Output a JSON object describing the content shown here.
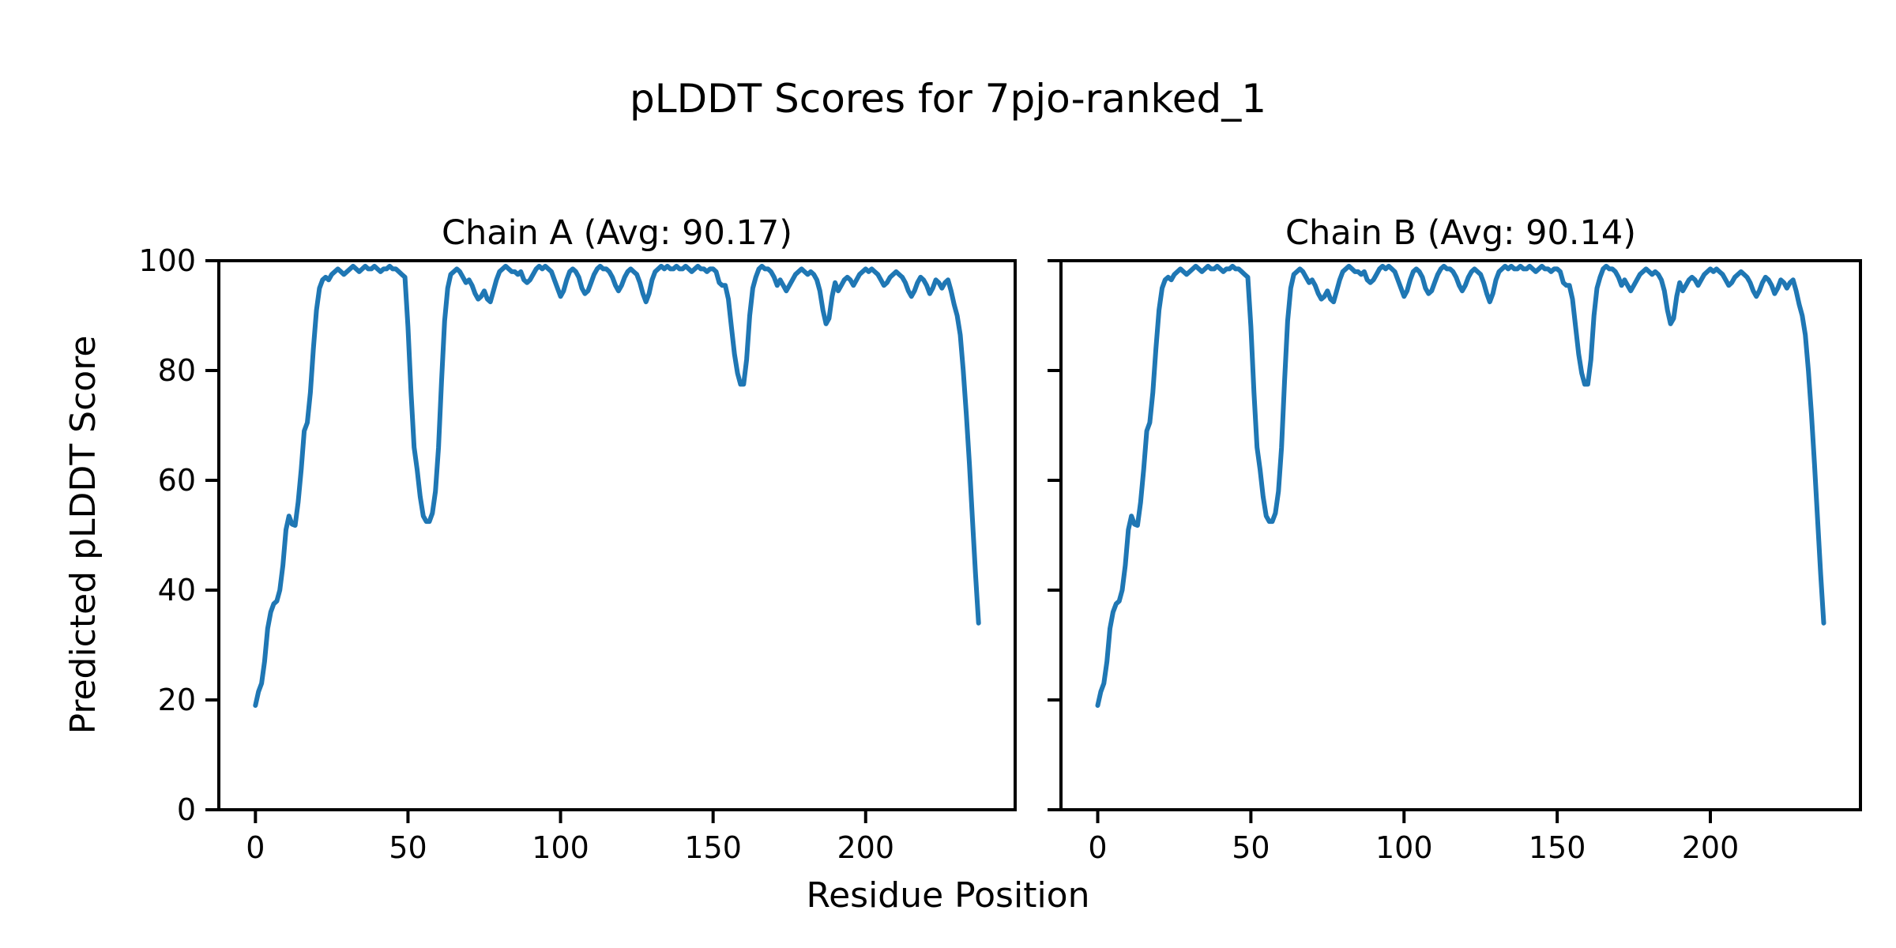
{
  "figure": {
    "title": "pLDDT Scores for 7pjo-ranked_1",
    "background_color": "#ffffff",
    "text_color": "#000000"
  },
  "chart_data": {
    "type": "line",
    "title": "pLDDT Scores for 7pjo-ranked_1",
    "xlabel": "Residue Position",
    "ylabel": "Predicted pLDDT Score",
    "xlim": [
      -12,
      249
    ],
    "ylim": [
      0,
      100
    ],
    "xticks": [
      0,
      50,
      100,
      150,
      200
    ],
    "yticks": [
      0,
      20,
      40,
      60,
      80,
      100
    ],
    "grid": false,
    "legend": "none",
    "line_color": "#1f77b4",
    "axis_color": "#000000",
    "x_start": 0,
    "x_step": 1,
    "subplots": [
      {
        "id": "chain-a",
        "name": "Chain A",
        "avg": 90.17,
        "title": "Chain A (Avg: 90.17)",
        "values": [
          19,
          21.5,
          23,
          27,
          33,
          36,
          37.5,
          38,
          40,
          44.5,
          51,
          53.5,
          52,
          51.8,
          56,
          62,
          69,
          70.5,
          76,
          84,
          91,
          95,
          96.5,
          97,
          96.5,
          97.5,
          98,
          98.5,
          98,
          97.5,
          98,
          98.5,
          99,
          98.5,
          98,
          98.5,
          99,
          98.5,
          98.5,
          99,
          98.5,
          98,
          98.5,
          98.5,
          99,
          98.5,
          98.5,
          98,
          97.5,
          97,
          88,
          76,
          66,
          62,
          57,
          53.5,
          52.5,
          52.5,
          54,
          58,
          66,
          78,
          89,
          95,
          97.5,
          98,
          98.5,
          98,
          97,
          96,
          96.5,
          95.5,
          94,
          93,
          93.5,
          94.5,
          93,
          92.5,
          94.5,
          96.5,
          98,
          98.5,
          99,
          98.5,
          98,
          98,
          97.5,
          98,
          96.5,
          96,
          96.5,
          97.5,
          98.5,
          99,
          98.5,
          99,
          98.5,
          98,
          96.5,
          95,
          93.5,
          94.5,
          96.5,
          98,
          98.5,
          98,
          97,
          95,
          94,
          94.5,
          96,
          97.5,
          98.5,
          99,
          98.5,
          98.5,
          98,
          97,
          95.5,
          94.5,
          95.5,
          97,
          98,
          98.5,
          98,
          97.5,
          96,
          94,
          92.5,
          94,
          96.5,
          98,
          98.5,
          99,
          98.5,
          99,
          98.5,
          98.5,
          99,
          98.5,
          98.5,
          99,
          98.5,
          98,
          98.5,
          99,
          98.5,
          98.5,
          98,
          98.5,
          98.5,
          98,
          96,
          95.5,
          95.5,
          93,
          88,
          83,
          79.5,
          77.5,
          77.5,
          82,
          90,
          95,
          97,
          98.5,
          99,
          98.5,
          98.5,
          98,
          97,
          95.5,
          96.5,
          95.5,
          94.5,
          95.5,
          96.5,
          97.5,
          98,
          98.5,
          98,
          97.5,
          98,
          97.5,
          96.5,
          94.5,
          91,
          88.5,
          89.5,
          93.5,
          96,
          94.5,
          95.5,
          96.5,
          97,
          96.5,
          95.5,
          96.5,
          97.5,
          98,
          98.5,
          98,
          98.5,
          98,
          97.5,
          96.5,
          95.5,
          96,
          97,
          97.5,
          98,
          97.5,
          97,
          96,
          94.5,
          93.5,
          94.5,
          96,
          97,
          96.5,
          95.5,
          94,
          95,
          96.5,
          96,
          95,
          96,
          96.5,
          94.5,
          92,
          90,
          86.5,
          80,
          72,
          63,
          53,
          43,
          34
        ]
      },
      {
        "id": "chain-b",
        "name": "Chain B",
        "avg": 90.14,
        "title": "Chain B (Avg: 90.14)",
        "values": [
          19,
          21.5,
          23,
          27,
          33,
          36,
          37.5,
          38,
          40,
          44.5,
          51,
          53.5,
          52,
          51.8,
          56,
          62,
          69,
          70.5,
          76,
          84,
          91,
          95,
          96.5,
          97,
          96.5,
          97.5,
          98,
          98.5,
          98,
          97.5,
          98,
          98.5,
          99,
          98.5,
          98,
          98.5,
          99,
          98.5,
          98.5,
          99,
          98.5,
          98,
          98.5,
          98.5,
          99,
          98.5,
          98.5,
          98,
          97.5,
          97,
          88,
          76,
          66,
          62,
          57,
          53.5,
          52.5,
          52.5,
          54,
          58,
          66,
          78,
          89,
          95,
          97.5,
          98,
          98.5,
          98,
          97,
          96,
          96.5,
          95.5,
          94,
          93,
          93.5,
          94.5,
          93,
          92.5,
          94.5,
          96.5,
          98,
          98.5,
          99,
          98.5,
          98,
          98,
          97.5,
          98,
          96.5,
          96,
          96.5,
          97.5,
          98.5,
          99,
          98.5,
          99,
          98.5,
          98,
          96.5,
          95,
          93.5,
          94.5,
          96.5,
          98,
          98.5,
          98,
          97,
          95,
          94,
          94.5,
          96,
          97.5,
          98.5,
          99,
          98.5,
          98.5,
          98,
          97,
          95.5,
          94.5,
          95.5,
          97,
          98,
          98.5,
          98,
          97.5,
          96,
          94,
          92.5,
          94,
          96.5,
          98,
          98.5,
          99,
          98.5,
          99,
          98.5,
          98.5,
          99,
          98.5,
          98.5,
          99,
          98.5,
          98,
          98.5,
          99,
          98.5,
          98.5,
          98,
          98.5,
          98.5,
          98,
          96,
          95.5,
          95.5,
          93,
          88,
          83,
          79.5,
          77.5,
          77.5,
          82,
          90,
          95,
          97,
          98.5,
          99,
          98.5,
          98.5,
          98,
          97,
          95.5,
          96.5,
          95.5,
          94.5,
          95.5,
          96.5,
          97.5,
          98,
          98.5,
          98,
          97.5,
          98,
          97.5,
          96.5,
          94.5,
          91,
          88.5,
          89.5,
          93.5,
          96,
          94.5,
          95.5,
          96.5,
          97,
          96.5,
          95.5,
          96.5,
          97.5,
          98,
          98.5,
          98,
          98.5,
          98,
          97.5,
          96.5,
          95.5,
          96,
          97,
          97.5,
          98,
          97.5,
          97,
          96,
          94.5,
          93.5,
          94.5,
          96,
          97,
          96.5,
          95.5,
          94,
          95,
          96.5,
          96,
          95,
          96,
          96.5,
          94.5,
          92,
          90,
          86.5,
          80,
          72,
          63,
          53,
          43,
          34
        ]
      }
    ]
  }
}
